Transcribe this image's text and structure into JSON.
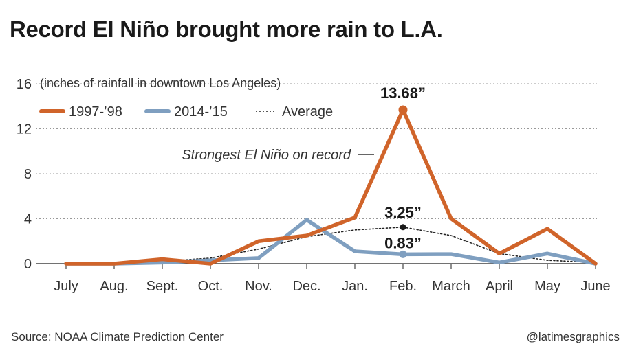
{
  "title": "Record El Niño brought more rain to L.A.",
  "source": "Source: NOAA Climate Prediction Center",
  "credit": "@latimesgraphics",
  "chart_data": {
    "type": "line",
    "subtitle": "(inches of rainfall in downtown Los Angeles)",
    "categories": [
      "July",
      "Aug.",
      "Sept.",
      "Oct.",
      "Nov.",
      "Dec.",
      "Jan.",
      "Feb.",
      "March",
      "April",
      "May",
      "June"
    ],
    "ylim": [
      0,
      16
    ],
    "yticks": [
      0,
      4,
      8,
      12,
      16
    ],
    "grid": true,
    "legend_position": "top-left",
    "series": [
      {
        "name": "1997-’98",
        "style": "solid",
        "color": "#d0642a",
        "values": [
          0.0,
          0.0,
          0.4,
          0.0,
          2.0,
          2.5,
          4.1,
          13.68,
          4.0,
          0.9,
          3.1,
          0.0
        ]
      },
      {
        "name": "2014-’15",
        "style": "solid",
        "color": "#7f9fc0",
        "values": [
          0.0,
          0.0,
          0.1,
          0.3,
          0.5,
          3.9,
          1.1,
          0.83,
          0.85,
          0.1,
          0.9,
          0.0
        ]
      },
      {
        "name": "Average",
        "style": "dotted",
        "color": "#222222",
        "values": [
          0.0,
          0.0,
          0.2,
          0.5,
          1.3,
          2.4,
          3.0,
          3.25,
          2.5,
          0.9,
          0.3,
          0.1
        ]
      }
    ],
    "annotations": [
      {
        "text": "13.68”",
        "series": 0,
        "index": 7
      },
      {
        "text": "3.25”",
        "series": 2,
        "index": 7
      },
      {
        "text": "0.83”",
        "series": 1,
        "index": 7
      },
      {
        "text": "Strongest El Niño on record",
        "series": 0,
        "index": 7
      }
    ]
  }
}
